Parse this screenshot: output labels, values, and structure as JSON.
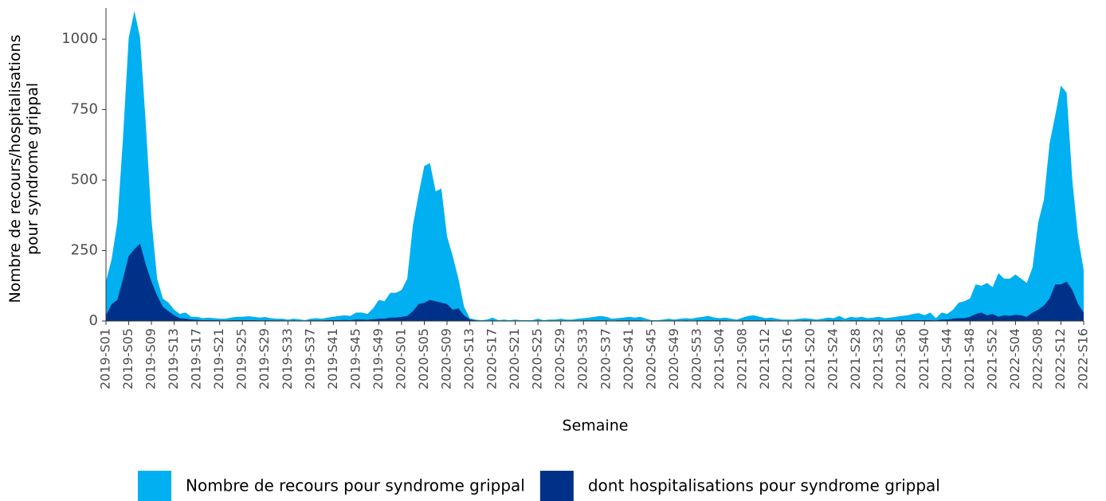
{
  "chart_data": {
    "type": "area",
    "ylabel": [
      "Nombre de recours/hospitalisations",
      "pour syndrome grippal"
    ],
    "xlabel": "Semaine",
    "categories": [
      "2019-S01",
      null,
      null,
      null,
      "2019-S05",
      null,
      null,
      null,
      "2019-S09",
      null,
      null,
      null,
      "2019-S13",
      null,
      null,
      null,
      "2019-S17",
      null,
      null,
      null,
      "2019-S21",
      null,
      null,
      null,
      "2019-S25",
      null,
      null,
      null,
      "2019-S29",
      null,
      null,
      null,
      "2019-S33",
      null,
      null,
      null,
      "2019-S37",
      null,
      null,
      null,
      "2019-S41",
      null,
      null,
      null,
      "2019-S45",
      null,
      null,
      null,
      "2019-S49",
      null,
      null,
      null,
      "2020-S01",
      null,
      null,
      null,
      "2020-S05",
      null,
      null,
      null,
      "2020-S09",
      null,
      null,
      null,
      "2020-S13",
      null,
      null,
      null,
      "2020-S17",
      null,
      null,
      null,
      "2020-S21",
      null,
      null,
      null,
      "2020-S25",
      null,
      null,
      null,
      "2020-S29",
      null,
      null,
      null,
      "2020-S33",
      null,
      null,
      null,
      "2020-S37",
      null,
      null,
      null,
      "2020-S41",
      null,
      null,
      null,
      "2020-S45",
      null,
      null,
      null,
      "2020-S49",
      null,
      null,
      null,
      "2020-S53",
      null,
      null,
      null,
      "2021-S04",
      null,
      null,
      null,
      "2021-S08",
      null,
      null,
      null,
      "2021-S12",
      null,
      null,
      null,
      "2021-S16",
      null,
      null,
      null,
      "2021-S20",
      null,
      null,
      null,
      "2021-S24",
      null,
      null,
      null,
      "2021-S28",
      null,
      null,
      null,
      "2021-S32",
      null,
      null,
      null,
      "2021-S36",
      null,
      null,
      null,
      "2021-S40",
      null,
      null,
      null,
      "2021-S44",
      null,
      null,
      null,
      "2021-S48",
      null,
      null,
      null,
      "2021-S52",
      null,
      null,
      null,
      "2022-S04",
      null,
      null,
      null,
      "2022-S08",
      null,
      null,
      null,
      "2022-S12",
      null,
      null,
      null,
      "2022-S16"
    ],
    "series": [
      {
        "name": "Nombre de recours pour syndrome grippal",
        "color": "#00b0f0",
        "values": [
          140,
          220,
          350,
          650,
          1005,
          1100,
          1005,
          700,
          360,
          150,
          80,
          65,
          40,
          25,
          30,
          15,
          15,
          10,
          12,
          10,
          8,
          8,
          12,
          15,
          15,
          17,
          15,
          12,
          14,
          10,
          8,
          8,
          5,
          8,
          6,
          3,
          8,
          10,
          8,
          12,
          15,
          18,
          20,
          18,
          30,
          30,
          25,
          45,
          75,
          70,
          100,
          100,
          110,
          150,
          340,
          450,
          550,
          560,
          460,
          470,
          300,
          230,
          150,
          50,
          10,
          5,
          3,
          5,
          12,
          3,
          5,
          3,
          5,
          3,
          3,
          3,
          8,
          3,
          5,
          5,
          8,
          5,
          5,
          8,
          10,
          12,
          15,
          18,
          15,
          8,
          10,
          12,
          15,
          12,
          15,
          8,
          3,
          3,
          5,
          8,
          5,
          8,
          10,
          8,
          12,
          15,
          18,
          12,
          10,
          12,
          8,
          5,
          12,
          18,
          20,
          15,
          10,
          12,
          8,
          5,
          5,
          5,
          8,
          10,
          8,
          5,
          8,
          12,
          10,
          18,
          8,
          15,
          12,
          15,
          10,
          12,
          15,
          10,
          12,
          15,
          18,
          20,
          25,
          28,
          20,
          30,
          10,
          30,
          25,
          40,
          65,
          70,
          80,
          130,
          125,
          135,
          120,
          170,
          150,
          150,
          165,
          150,
          135,
          190,
          350,
          430,
          630,
          730,
          835,
          810,
          500,
          300,
          180
        ]
      },
      {
        "name": "dont hospitalisations pour syndrome grippal",
        "color": "#003189",
        "values": [
          20,
          60,
          75,
          150,
          230,
          255,
          275,
          200,
          140,
          90,
          50,
          35,
          20,
          10,
          8,
          5,
          4,
          3,
          3,
          3,
          2,
          2,
          3,
          3,
          3,
          3,
          3,
          2,
          2,
          2,
          2,
          2,
          1,
          2,
          1,
          1,
          2,
          2,
          2,
          3,
          3,
          3,
          4,
          3,
          5,
          5,
          4,
          6,
          8,
          8,
          12,
          12,
          15,
          18,
          35,
          60,
          65,
          75,
          70,
          65,
          60,
          40,
          45,
          20,
          5,
          2,
          1,
          1,
          2,
          1,
          1,
          1,
          1,
          1,
          1,
          1,
          1,
          1,
          1,
          1,
          1,
          1,
          1,
          1,
          2,
          2,
          2,
          2,
          2,
          1,
          2,
          2,
          2,
          2,
          2,
          1,
          1,
          1,
          1,
          1,
          1,
          1,
          2,
          1,
          2,
          2,
          2,
          2,
          2,
          2,
          1,
          1,
          2,
          2,
          2,
          2,
          2,
          2,
          1,
          1,
          1,
          1,
          1,
          2,
          1,
          1,
          1,
          2,
          2,
          2,
          1,
          2,
          2,
          2,
          2,
          2,
          2,
          2,
          2,
          2,
          3,
          3,
          3,
          3,
          3,
          3,
          2,
          5,
          5,
          8,
          10,
          10,
          15,
          25,
          30,
          20,
          25,
          15,
          20,
          18,
          22,
          20,
          15,
          30,
          40,
          55,
          80,
          130,
          130,
          140,
          110,
          60,
          30
        ]
      }
    ],
    "ylim": [
      0,
      1105
    ],
    "yticks": [
      0,
      250,
      500,
      750,
      1000
    ],
    "grid": false,
    "legend": "bottom"
  }
}
